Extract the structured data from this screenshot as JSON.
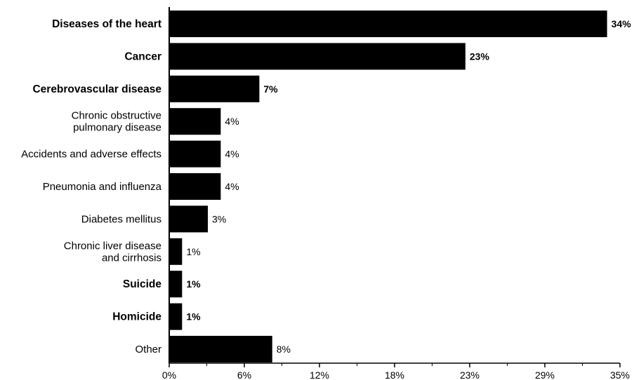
{
  "chart_data": {
    "type": "bar",
    "orientation": "horizontal",
    "categories": [
      [
        "Diseases of the heart"
      ],
      [
        "Cancer"
      ],
      [
        "Cerebrovascular disease"
      ],
      [
        "Chronic obstructive",
        "pulmonary disease"
      ],
      [
        "Accidents and adverse effects"
      ],
      [
        "Pneumonia and influenza"
      ],
      [
        "Diabetes mellitus"
      ],
      [
        "Chronic liver disease",
        "and cirrhosis"
      ],
      [
        "Suicide"
      ],
      [
        "Homicide"
      ],
      [
        "Other"
      ]
    ],
    "values": [
      34,
      23,
      7,
      4,
      4,
      4,
      3,
      1,
      1,
      1,
      8
    ],
    "value_labels": [
      "34%",
      "23%",
      "7%",
      "4%",
      "4%",
      "4%",
      "3%",
      "1%",
      "1%",
      "1%",
      "8%"
    ],
    "emphasized": [
      true,
      true,
      true,
      false,
      false,
      false,
      false,
      false,
      true,
      true,
      false
    ],
    "xlim": [
      0,
      35
    ],
    "x_ticks": [
      0,
      5.833,
      11.667,
      17.5,
      23.333,
      29.167,
      35
    ],
    "x_tick_labels": [
      "0%",
      "6%",
      "12%",
      "18%",
      "23%",
      "29%",
      "35%"
    ],
    "title": "",
    "xlabel": "",
    "ylabel": "",
    "grid": false,
    "bar_color": "#000000"
  }
}
